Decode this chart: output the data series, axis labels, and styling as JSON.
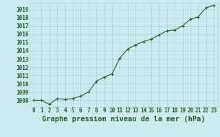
{
  "x": [
    0,
    1,
    2,
    3,
    4,
    5,
    6,
    7,
    8,
    9,
    10,
    11,
    12,
    13,
    14,
    15,
    16,
    17,
    18,
    19,
    20,
    21,
    22,
    23
  ],
  "y": [
    1008.0,
    1008.0,
    1007.5,
    1008.2,
    1008.1,
    1008.2,
    1008.5,
    1009.0,
    1010.3,
    1010.8,
    1011.2,
    1013.1,
    1014.2,
    1014.7,
    1015.1,
    1015.4,
    1015.9,
    1016.4,
    1016.5,
    1017.0,
    1017.8,
    1018.1,
    1019.2,
    1019.5
  ],
  "line_color": "#1a5c1a",
  "marker_color": "#1a5c1a",
  "bg_color": "#cdeaf0",
  "grid_color": "#aacdd6",
  "outer_bg": "#cdeaf0",
  "xlabel": "Graphe pression niveau de la mer (hPa)",
  "xlabel_color": "#1a5c1a",
  "tick_color": "#1a5c1a",
  "ylim_min": 1007.2,
  "ylim_max": 1019.8,
  "tick_fontsize": 5.5,
  "xlabel_fontsize": 7.5
}
